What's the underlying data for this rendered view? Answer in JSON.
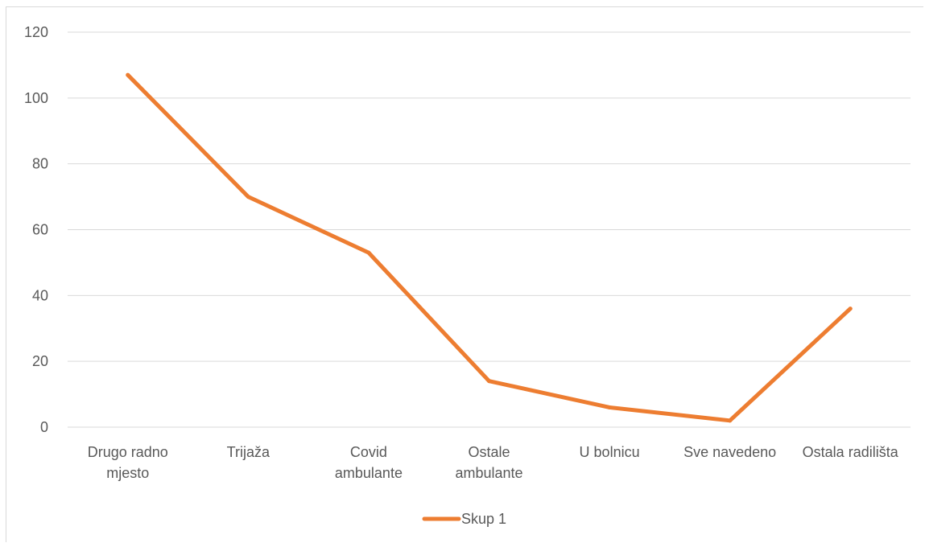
{
  "chart_data": {
    "type": "line",
    "categories": [
      [
        "Drugo radno",
        "mjesto"
      ],
      [
        "Trijaža"
      ],
      [
        "Covid",
        "ambulante"
      ],
      [
        "Ostale",
        "ambulante"
      ],
      [
        "U bolnicu"
      ],
      [
        "Sve navedeno"
      ],
      [
        "Ostala radilišta"
      ]
    ],
    "series": [
      {
        "name": "Skup 1",
        "values": [
          107,
          70,
          53,
          14,
          6,
          2,
          36
        ],
        "color": "#ED7D31"
      }
    ],
    "title": "",
    "xlabel": "",
    "ylabel": "",
    "ylim": [
      0,
      120
    ],
    "yticks": [
      0,
      20,
      40,
      60,
      80,
      100,
      120
    ],
    "grid": true,
    "gridColor": "#d9d9d9",
    "legend": "bottom"
  }
}
